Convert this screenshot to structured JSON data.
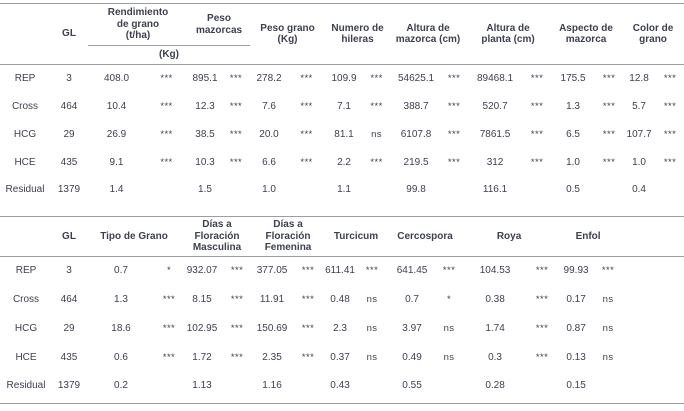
{
  "colors": {
    "text": "#3d4051",
    "rule": "#9c9ca1",
    "background": "#ffffff"
  },
  "table1": {
    "gl_header": "GL",
    "group_kg_label": "(Kg)",
    "columns": [
      "Rendimiento\nde grano\n(t/ha)",
      "Peso\nmazorcas",
      "Peso grano\n(Kg)",
      "Numero de\nhileras",
      "Altura de\nmazorca (cm)",
      "Altura de\nplanta (cm)",
      "Aspecto de\nmazorca",
      "Color de\ngrano"
    ],
    "rows": [
      {
        "source": "REP",
        "gl": "3",
        "values": [
          "408.0",
          "895.1",
          "278.2",
          "109.9",
          "54625.1",
          "89468.1",
          "175.5",
          "12.8"
        ],
        "sig": [
          "***",
          "***",
          "***",
          "***",
          "***",
          "***",
          "***",
          "***"
        ]
      },
      {
        "source": "Cross",
        "gl": "464",
        "values": [
          "10.4",
          "12.3",
          "7.6",
          "7.1",
          "388.7",
          "520.7",
          "1.3",
          "5.7"
        ],
        "sig": [
          "***",
          "***",
          "***",
          "***",
          "***",
          "***",
          "***",
          "***"
        ]
      },
      {
        "source": "HCG",
        "gl": "29",
        "values": [
          "26.9",
          "38.5",
          "20.0",
          "81.1",
          "6107.8",
          "7861.5",
          "6.5",
          "107.7"
        ],
        "sig": [
          "***",
          "***",
          "***",
          "ns",
          "***",
          "***",
          "***",
          "***"
        ]
      },
      {
        "source": "HCE",
        "gl": "435",
        "values": [
          "9.1",
          "10.3",
          "6.6",
          "2.2",
          "219.5",
          "312",
          "1.0",
          "1.0"
        ],
        "sig": [
          "***",
          "***",
          "***",
          "***",
          "***",
          "***",
          "***",
          "***"
        ]
      },
      {
        "source": "Residual",
        "gl": "1379",
        "values": [
          "1.4",
          "1.5",
          "1.0",
          "1.1",
          "99.8",
          "116.1",
          "0.5",
          "0.4"
        ],
        "sig": [
          "",
          "",
          "",
          "",
          "",
          "",
          "",
          ""
        ]
      }
    ]
  },
  "table2": {
    "gl_header": "GL",
    "columns": [
      "Tipo de Grano",
      "Días a\nFloración\nMasculina",
      "Días a\nFloración\nFemenina",
      "Turcicum",
      "Cercospora",
      "Roya",
      "Enfol"
    ],
    "rows": [
      {
        "source": "REP",
        "gl": "3",
        "values": [
          "0.7",
          "932.07",
          "377.05",
          "611.41",
          "641.45",
          "104.53",
          "99.93"
        ],
        "sig": [
          "*",
          "***",
          "***",
          "***",
          "***",
          "***",
          "***"
        ]
      },
      {
        "source": "Cross",
        "gl": "464",
        "values": [
          "1.3",
          "8.15",
          "11.91",
          "0.48",
          "0.7",
          "0.38",
          "0.17"
        ],
        "sig": [
          "***",
          "***",
          "***",
          "ns",
          "*",
          "***",
          "ns"
        ]
      },
      {
        "source": "HCG",
        "gl": "29",
        "values": [
          "18.6",
          "102.95",
          "150.69",
          "2.3",
          "3.97",
          "1.74",
          "0.87"
        ],
        "sig": [
          "***",
          "***",
          "***",
          "ns",
          "ns",
          "***",
          "ns"
        ]
      },
      {
        "source": "HCE",
        "gl": "435",
        "values": [
          "0.6",
          "1.72",
          "2.35",
          "0.37",
          "0.49",
          "0.3",
          "0.13"
        ],
        "sig": [
          "***",
          "***",
          "***",
          "ns",
          "ns",
          "***",
          "ns"
        ]
      },
      {
        "source": "Residual",
        "gl": "1379",
        "values": [
          "0.2",
          "1.13",
          "1.16",
          "0.43",
          "0.55",
          "0.28",
          "0.15"
        ],
        "sig": [
          "",
          "",
          "",
          "",
          "",
          "",
          ""
        ]
      }
    ]
  }
}
